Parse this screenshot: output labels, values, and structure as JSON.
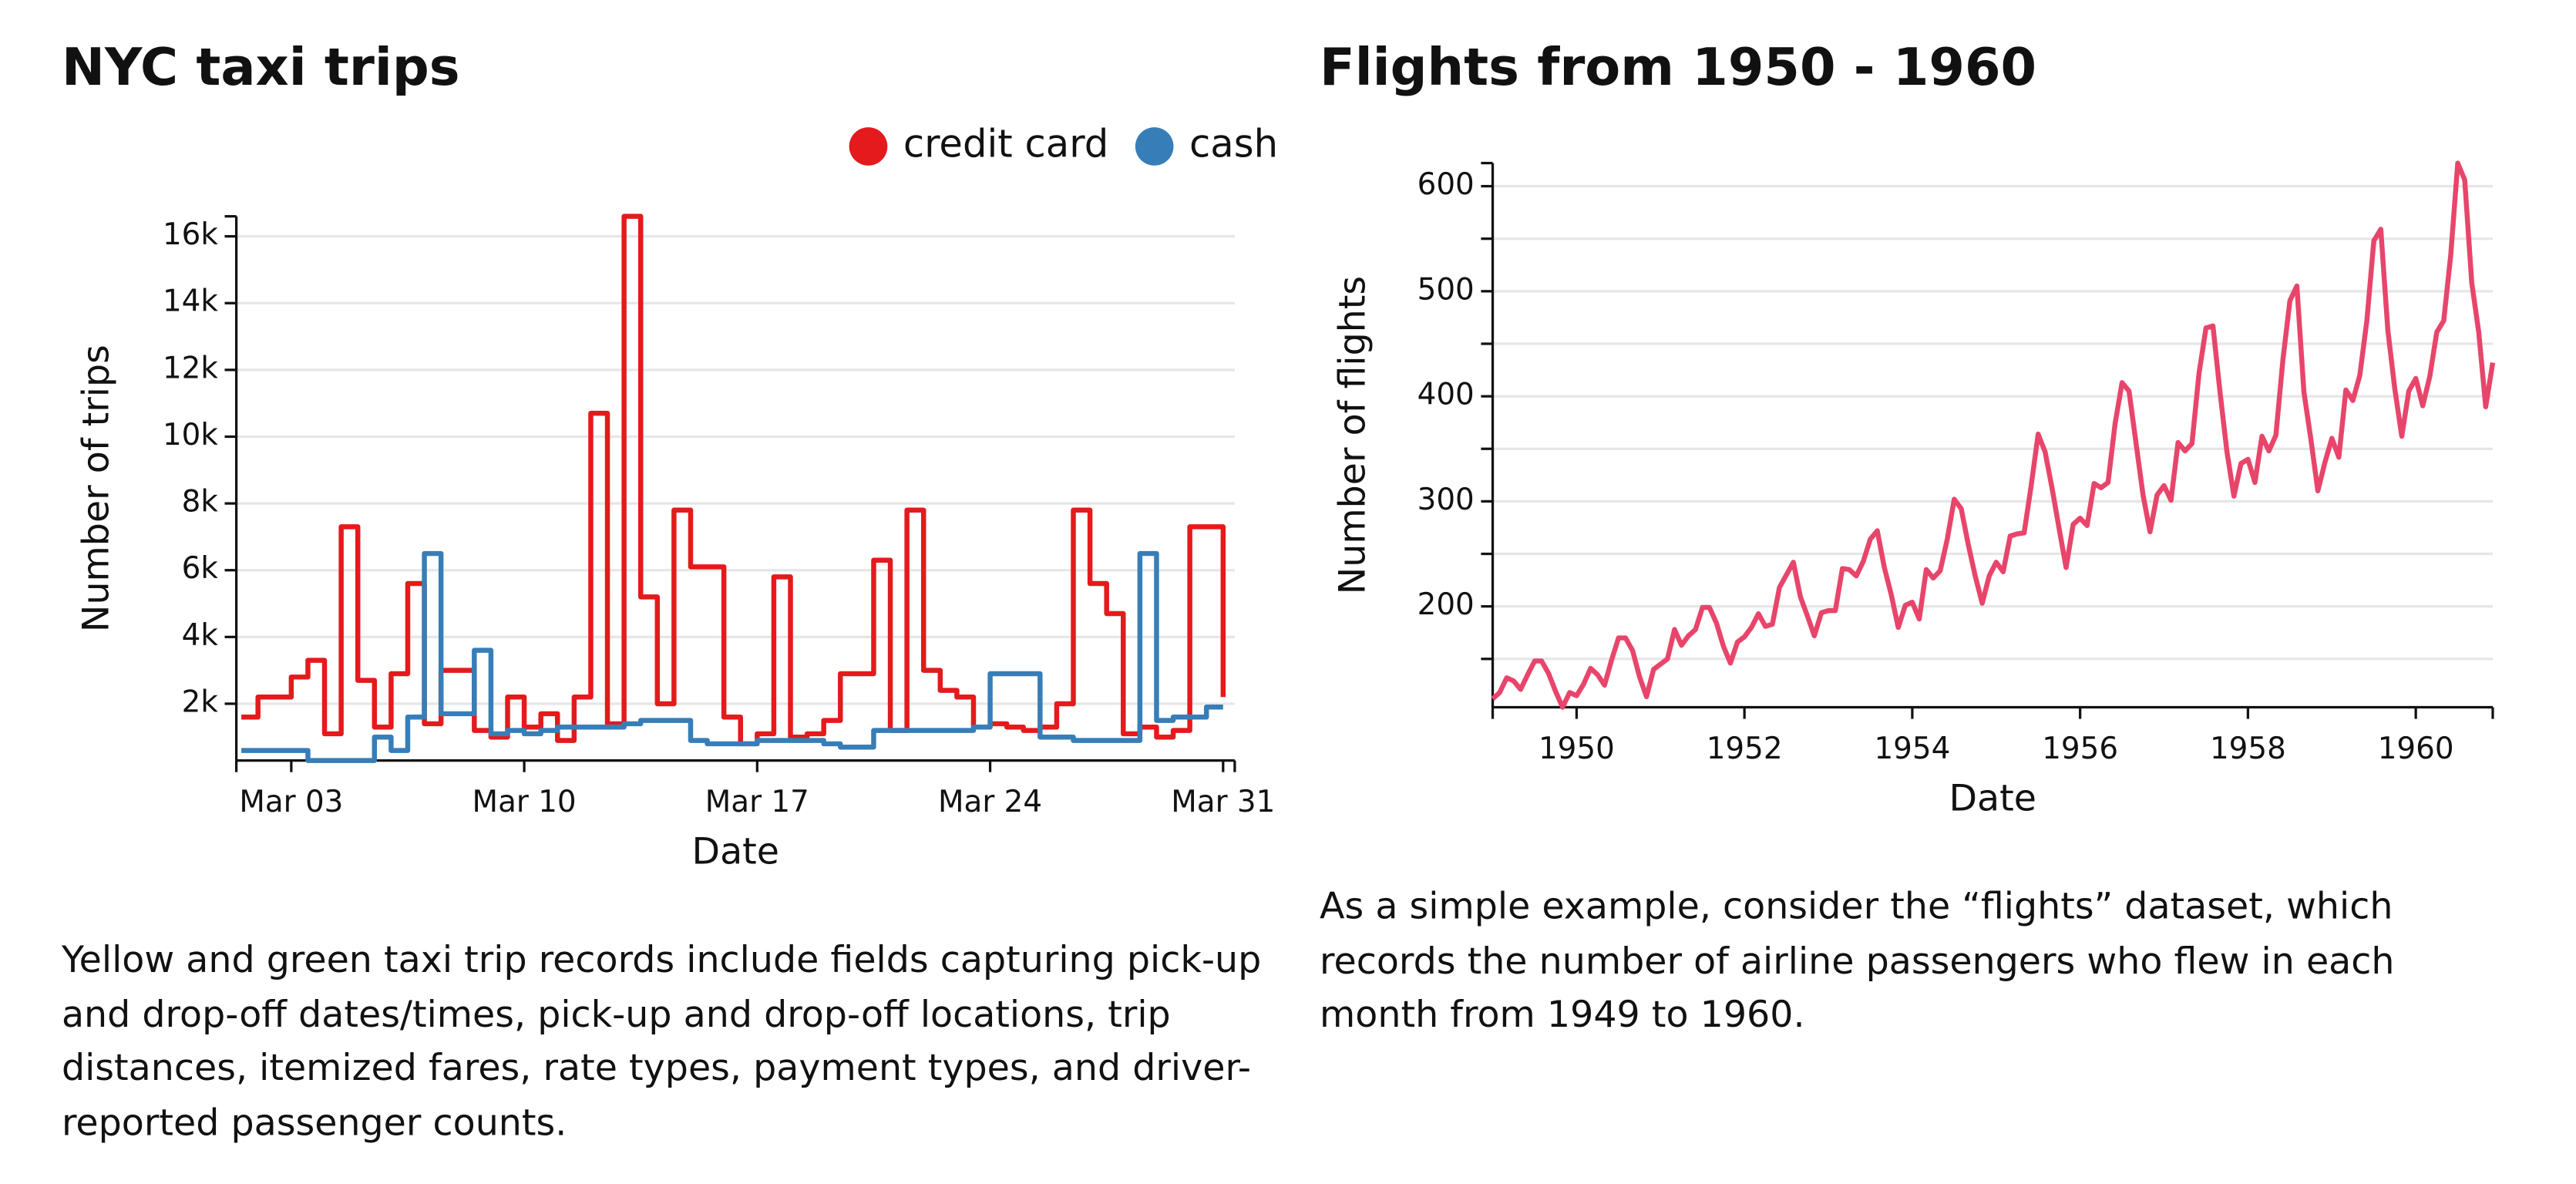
{
  "chart_data": [
    {
      "type": "step-line",
      "title": "NYC taxi trips",
      "x_label": "Date",
      "y_label": "Number of trips",
      "description": "Yellow and green taxi trip records include fields capturing pick-up and drop-off dates/times, pick-up and drop-off locations, trip distances, itemized fares, rate types, payment types, and driver-reported passenger counts.",
      "x": [
        1.5,
        2,
        2.5,
        3,
        3.5,
        4,
        4.5,
        5,
        5.5,
        6,
        6.5,
        7,
        7.5,
        8,
        8.5,
        9,
        9.5,
        10,
        10.5,
        11,
        11.5,
        12,
        12.5,
        13,
        13.5,
        14,
        14.5,
        15,
        15.5,
        16,
        16.5,
        17,
        17.5,
        18,
        18.5,
        19,
        19.5,
        20,
        20.5,
        21,
        21.5,
        22,
        22.5,
        23,
        23.5,
        24,
        24.5,
        25,
        25.5,
        26,
        26.5,
        27,
        27.5,
        28,
        28.5,
        29,
        29.5,
        30,
        30.5,
        31
      ],
      "series": [
        {
          "name": "credit card",
          "color": "#e41a1c",
          "values": [
            1600,
            2200,
            2200,
            2800,
            3300,
            1100,
            7300,
            2700,
            1300,
            2900,
            5600,
            1400,
            3000,
            3000,
            1200,
            1000,
            2200,
            1300,
            1700,
            900,
            2200,
            10700,
            1400,
            16600,
            5200,
            2000,
            7800,
            6100,
            6100,
            1600,
            800,
            1100,
            5800,
            1000,
            1100,
            1500,
            2900,
            2900,
            6300,
            1200,
            7800,
            3000,
            2400,
            2200,
            1300,
            1400,
            1300,
            1200,
            1300,
            2000,
            7800,
            5600,
            4700,
            1100,
            1300,
            1000,
            1200,
            7300,
            7300,
            2200
          ]
        },
        {
          "name": "cash",
          "color": "#377eb8",
          "values": [
            600,
            600,
            600,
            600,
            300,
            300,
            300,
            300,
            1000,
            600,
            1600,
            6500,
            1700,
            1700,
            3600,
            1100,
            1200,
            1100,
            1200,
            1300,
            1300,
            1300,
            1300,
            1400,
            1500,
            1500,
            1500,
            900,
            800,
            800,
            800,
            900,
            900,
            900,
            900,
            800,
            700,
            700,
            1200,
            1200,
            1200,
            1200,
            1200,
            1200,
            1300,
            2900,
            2900,
            2900,
            1000,
            1000,
            900,
            900,
            900,
            900,
            6500,
            1500,
            1600,
            1600,
            1900,
            1900
          ]
        }
      ],
      "xlim": [
        1.35,
        31.35
      ],
      "xticks": [
        {
          "value": 3,
          "label": "Mar 03"
        },
        {
          "value": 10,
          "label": "Mar 10"
        },
        {
          "value": 17,
          "label": "Mar 17"
        },
        {
          "value": 24,
          "label": "Mar 24"
        },
        {
          "value": 31,
          "label": "Mar 31"
        }
      ],
      "ylim": [
        300,
        16600
      ],
      "yticks": [
        {
          "value": 2000,
          "label": "2k"
        },
        {
          "value": 4000,
          "label": "4k"
        },
        {
          "value": 6000,
          "label": "6k"
        },
        {
          "value": 8000,
          "label": "8k"
        },
        {
          "value": 10000,
          "label": "10k"
        },
        {
          "value": 12000,
          "label": "12k"
        },
        {
          "value": 14000,
          "label": "14k"
        },
        {
          "value": 16000,
          "label": "16k"
        }
      ],
      "grid": true,
      "legend": "top-right"
    },
    {
      "type": "line",
      "title": "Flights from 1950 - 1960",
      "x_label": "Date",
      "y_label": "Number of flights",
      "description": "As a simple example, consider the “flights” dataset, which records the number of airline passengers who flew in each month from 1949 to 1960.",
      "x": [
        1949,
        1949.083,
        1949.167,
        1949.25,
        1949.333,
        1949.417,
        1949.5,
        1949.583,
        1949.667,
        1949.75,
        1949.833,
        1949.917,
        1950,
        1950.083,
        1950.167,
        1950.25,
        1950.333,
        1950.417,
        1950.5,
        1950.583,
        1950.667,
        1950.75,
        1950.833,
        1950.917,
        1951,
        1951.083,
        1951.167,
        1951.25,
        1951.333,
        1951.417,
        1951.5,
        1951.583,
        1951.667,
        1951.75,
        1951.833,
        1951.917,
        1952,
        1952.083,
        1952.167,
        1952.25,
        1952.333,
        1952.417,
        1952.5,
        1952.583,
        1952.667,
        1952.75,
        1952.833,
        1952.917,
        1953,
        1953.083,
        1953.167,
        1953.25,
        1953.333,
        1953.417,
        1953.5,
        1953.583,
        1953.667,
        1953.75,
        1953.833,
        1953.917,
        1954,
        1954.083,
        1954.167,
        1954.25,
        1954.333,
        1954.417,
        1954.5,
        1954.583,
        1954.667,
        1954.75,
        1954.833,
        1954.917,
        1955,
        1955.083,
        1955.167,
        1955.25,
        1955.333,
        1955.417,
        1955.5,
        1955.583,
        1955.667,
        1955.75,
        1955.833,
        1955.917,
        1956,
        1956.083,
        1956.167,
        1956.25,
        1956.333,
        1956.417,
        1956.5,
        1956.583,
        1956.667,
        1956.75,
        1956.833,
        1956.917,
        1957,
        1957.083,
        1957.167,
        1957.25,
        1957.333,
        1957.417,
        1957.5,
        1957.583,
        1957.667,
        1957.75,
        1957.833,
        1957.917,
        1958,
        1958.083,
        1958.167,
        1958.25,
        1958.333,
        1958.417,
        1958.5,
        1958.583,
        1958.667,
        1958.75,
        1958.833,
        1958.917,
        1959,
        1959.083,
        1959.167,
        1959.25,
        1959.333,
        1959.417,
        1959.5,
        1959.583,
        1959.667,
        1959.75,
        1959.833,
        1959.917,
        1960,
        1960.083,
        1960.167,
        1960.25,
        1960.333,
        1960.417,
        1960.5,
        1960.583,
        1960.667,
        1960.75,
        1960.833,
        1960.917
      ],
      "values": [
        112,
        118,
        132,
        129,
        121,
        135,
        148,
        148,
        136,
        119,
        104,
        118,
        115,
        126,
        141,
        135,
        125,
        149,
        170,
        170,
        158,
        133,
        114,
        140,
        145,
        150,
        178,
        163,
        172,
        178,
        199,
        199,
        184,
        162,
        146,
        166,
        171,
        180,
        193,
        181,
        183,
        218,
        230,
        242,
        209,
        191,
        172,
        194,
        196,
        196,
        236,
        235,
        229,
        243,
        264,
        272,
        237,
        211,
        180,
        201,
        204,
        188,
        235,
        227,
        234,
        264,
        302,
        293,
        259,
        229,
        203,
        229,
        242,
        233,
        267,
        269,
        270,
        315,
        364,
        347,
        312,
        274,
        237,
        278,
        284,
        277,
        317,
        313,
        318,
        374,
        413,
        405,
        355,
        306,
        271,
        306,
        315,
        301,
        356,
        348,
        355,
        422,
        465,
        467,
        404,
        347,
        305,
        336,
        340,
        318,
        362,
        348,
        363,
        435,
        491,
        505,
        404,
        359,
        310,
        337,
        360,
        342,
        406,
        396,
        420,
        472,
        548,
        559,
        463,
        407,
        362,
        405,
        417,
        391,
        419,
        461,
        472,
        535,
        622,
        606,
        508,
        461,
        390,
        432
      ],
      "color": "#e8456b",
      "xlim": [
        1949,
        1960.917
      ],
      "xticks": [
        1950,
        1952,
        1954,
        1956,
        1958,
        1960
      ],
      "ylim": [
        104,
        622
      ],
      "yticks": [
        200,
        300,
        400,
        500,
        600
      ],
      "ygrid": [
        150,
        200,
        250,
        300,
        350,
        400,
        450,
        500,
        550,
        600
      ],
      "grid": true
    }
  ]
}
